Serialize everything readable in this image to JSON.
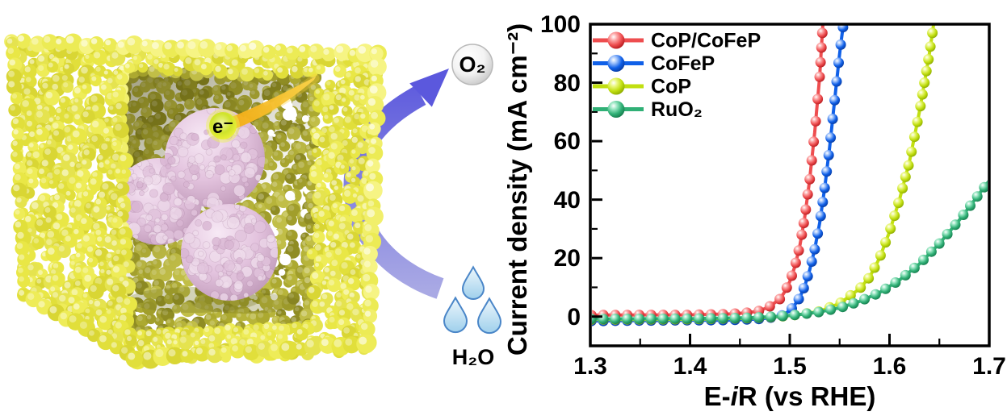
{
  "figure": {
    "left_panel": {
      "description": "yellow nanobox containing pink catalyst spheres",
      "electron_label": "e⁻",
      "oxygen_label": "O₂",
      "water_label": "H₂O",
      "colors": {
        "box_yellow": "#e5e340",
        "interior_olive": "#b2ae35",
        "sphere_pink": "#e3c3de",
        "arrow_purple_light": "#a9a9e4",
        "arrow_purple_dark": "#5b58dd",
        "comet_orange": "#f3ac14",
        "droplet_blue": "#9fd0ec",
        "electron_badge": "#cfe32b"
      }
    }
  },
  "chart_data": {
    "type": "line",
    "title": "",
    "xlabel_pre": "E-",
    "xlabel_italic": "i",
    "xlabel_post": "R (vs RHE)",
    "ylabel": "Current density (mA cm⁻²)",
    "xlim": [
      1.3,
      1.7
    ],
    "ylim": [
      -10,
      100
    ],
    "grid": false,
    "legend_position": "top-left",
    "x_ticks": [
      "1.3",
      "1.4",
      "1.5",
      "1.6",
      "1.7"
    ],
    "y_ticks": [
      "0",
      "20",
      "40",
      "60",
      "80",
      "100"
    ],
    "series": [
      {
        "name": "CoP/CoFeP",
        "color": "#ee4d4f",
        "light": "#fca6a6",
        "dark": "#b3181c",
        "points": [
          [
            1.3,
            0.5
          ],
          [
            1.36,
            0.6
          ],
          [
            1.4,
            0.6
          ],
          [
            1.44,
            0.9
          ],
          [
            1.46,
            1.4
          ],
          [
            1.47,
            2.0
          ],
          [
            1.48,
            3.5
          ],
          [
            1.49,
            6.0
          ],
          [
            1.495,
            8.5
          ],
          [
            1.5,
            12
          ],
          [
            1.505,
            17
          ],
          [
            1.51,
            24
          ],
          [
            1.515,
            34
          ],
          [
            1.52,
            47
          ],
          [
            1.525,
            63
          ],
          [
            1.53,
            82
          ],
          [
            1.5335,
            102
          ]
        ]
      },
      {
        "name": "CoFeP",
        "color": "#1060e8",
        "light": "#9cc0fb",
        "dark": "#083a9e",
        "points": [
          [
            1.3,
            -1.5
          ],
          [
            1.38,
            -1.3
          ],
          [
            1.44,
            -1.2
          ],
          [
            1.47,
            -0.8
          ],
          [
            1.49,
            0.0
          ],
          [
            1.5,
            2.0
          ],
          [
            1.505,
            4.0
          ],
          [
            1.51,
            6.5
          ],
          [
            1.515,
            10.5
          ],
          [
            1.52,
            16
          ],
          [
            1.525,
            23
          ],
          [
            1.53,
            32
          ],
          [
            1.535,
            44
          ],
          [
            1.54,
            58
          ],
          [
            1.545,
            74
          ],
          [
            1.55,
            90
          ],
          [
            1.5545,
            102
          ]
        ]
      },
      {
        "name": "CoP",
        "color": "#c1df10",
        "light": "#eaf77e",
        "dark": "#8ca900",
        "points": [
          [
            1.3,
            -1.0
          ],
          [
            1.4,
            -0.9
          ],
          [
            1.46,
            -0.5
          ],
          [
            1.49,
            0.0
          ],
          [
            1.51,
            0.7
          ],
          [
            1.53,
            1.8
          ],
          [
            1.55,
            4.5
          ],
          [
            1.57,
            9.5
          ],
          [
            1.58,
            13.5
          ],
          [
            1.59,
            20
          ],
          [
            1.6,
            29
          ],
          [
            1.61,
            40
          ],
          [
            1.62,
            53
          ],
          [
            1.63,
            70
          ],
          [
            1.64,
            90
          ],
          [
            1.646,
            104
          ]
        ]
      },
      {
        "name": "RuO₂",
        "color": "#30b076",
        "light": "#98e6c2",
        "dark": "#157a4b",
        "points": [
          [
            1.3,
            -0.8
          ],
          [
            1.4,
            -0.7
          ],
          [
            1.46,
            -0.4
          ],
          [
            1.49,
            0.1
          ],
          [
            1.51,
            0.7
          ],
          [
            1.53,
            1.6
          ],
          [
            1.55,
            3.0
          ],
          [
            1.57,
            5.2
          ],
          [
            1.59,
            8.2
          ],
          [
            1.61,
            12.5
          ],
          [
            1.63,
            18
          ],
          [
            1.65,
            25
          ],
          [
            1.67,
            33
          ],
          [
            1.69,
            42
          ],
          [
            1.7,
            46.5
          ]
        ]
      }
    ]
  }
}
